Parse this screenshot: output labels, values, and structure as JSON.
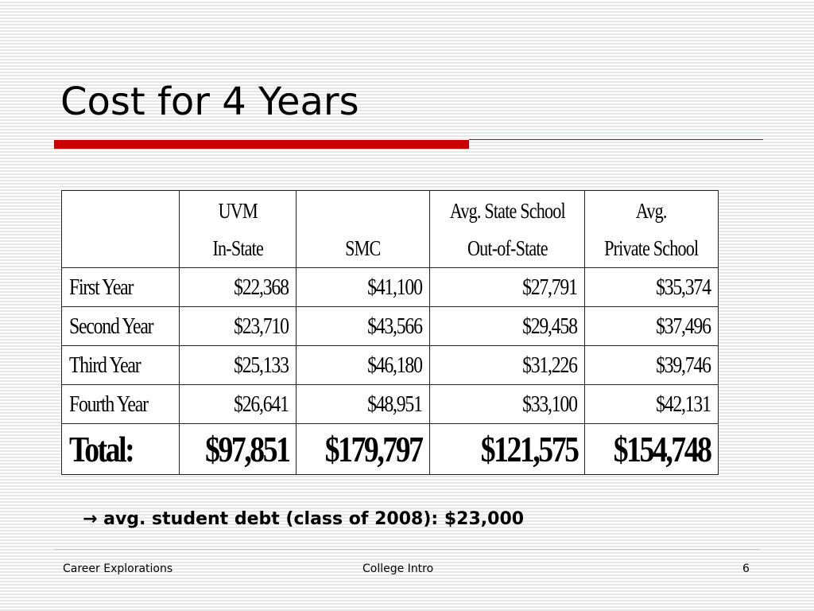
{
  "slide": {
    "title": "Cost for 4 Years"
  },
  "table": {
    "headers": [
      {
        "line1": "",
        "line2": ""
      },
      {
        "line1": "UVM",
        "line2": "In-State"
      },
      {
        "line1": "",
        "line2": "SMC"
      },
      {
        "line1": "Avg. State School",
        "line2": "Out-of-State"
      },
      {
        "line1": "Avg.",
        "line2": "Private School"
      }
    ],
    "rows": [
      {
        "label": "First Year",
        "values": [
          "$22,368",
          "$41,100",
          "$27,791",
          "$35,374"
        ]
      },
      {
        "label": "Second Year",
        "values": [
          "$23,710",
          "$43,566",
          "$29,458",
          "$37,496"
        ]
      },
      {
        "label": "Third Year",
        "values": [
          "$25,133",
          "$46,180",
          "$31,226",
          "$39,746"
        ]
      },
      {
        "label": "Fourth Year",
        "values": [
          "$26,641",
          "$48,951",
          "$33,100",
          "$42,131"
        ]
      }
    ],
    "total": {
      "label": "Total:",
      "values": [
        "$97,851",
        "$179,797",
        "$121,575",
        "$154,748"
      ]
    }
  },
  "note": {
    "arrow": "→",
    "text": "avg. student debt (class of 2008): $23,000"
  },
  "footer": {
    "left": "Career Explorations",
    "center": "College Intro",
    "page_number": "6"
  },
  "colors": {
    "accent_red": "#cc0000",
    "stripe": "#e8e8e8"
  }
}
